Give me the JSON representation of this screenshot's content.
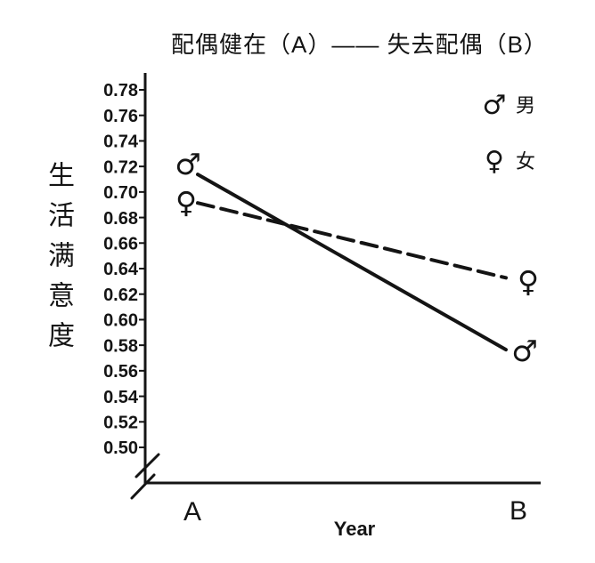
{
  "chart_data": {
    "type": "line",
    "title": "配偶健在（A）—— 失去配偶（B）",
    "xlabel": "Year",
    "ylabel": "生活满意度",
    "categories": [
      "A",
      "B"
    ],
    "ylim": [
      0.5,
      0.78
    ],
    "ytick_step": 0.02,
    "yticks": [
      "0.78",
      "0.76",
      "0.74",
      "0.72",
      "0.70",
      "0.68",
      "0.66",
      "0.64",
      "0.62",
      "0.60",
      "0.58",
      "0.56",
      "0.54",
      "0.52",
      "0.50"
    ],
    "axis_break": true,
    "grid": false,
    "legend_position": "top-right",
    "series": [
      {
        "name": "男",
        "marker": "♂",
        "line_style": "solid",
        "values": [
          0.72,
          0.58
        ]
      },
      {
        "name": "女",
        "marker": "♀",
        "line_style": "dashed",
        "values": [
          0.69,
          0.63
        ]
      }
    ],
    "legend": [
      {
        "symbol": "♂",
        "label": "男"
      },
      {
        "symbol": "♀",
        "label": "女"
      }
    ],
    "colors": {
      "ink": "#141414",
      "background": "#ffffff"
    }
  }
}
